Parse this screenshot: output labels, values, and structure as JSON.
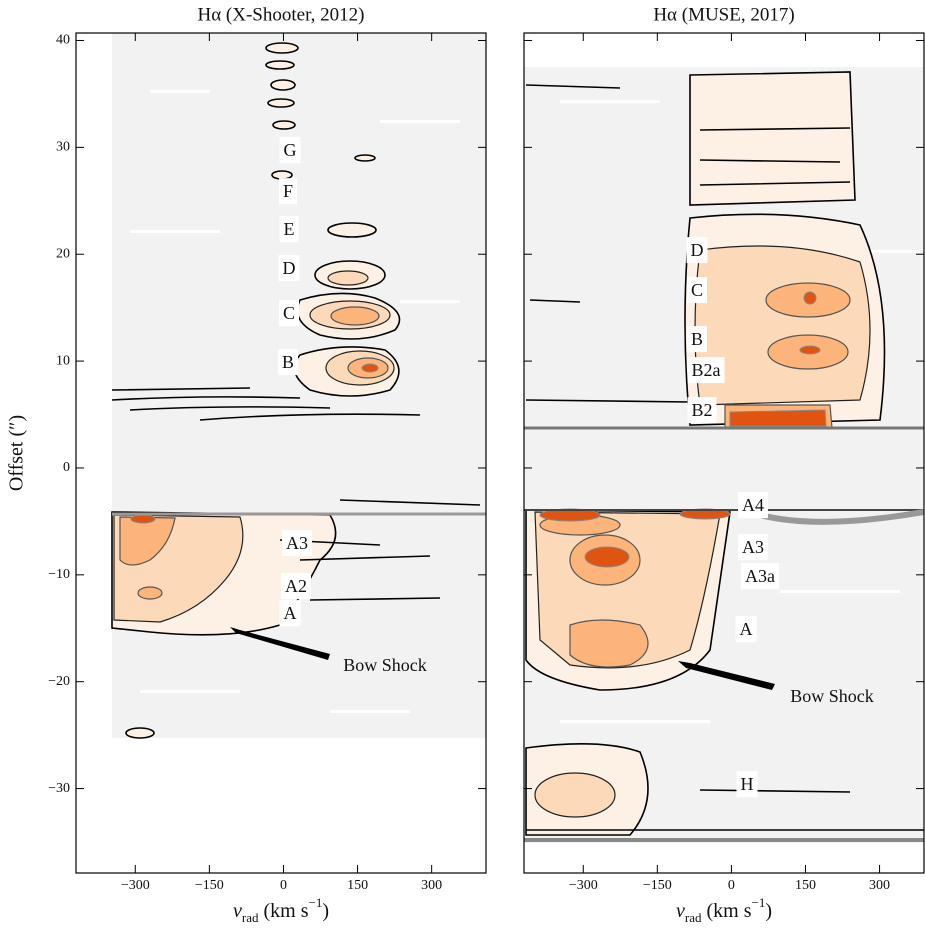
{
  "chart_data": [
    {
      "type": "contour",
      "title": "Hα (X-Shooter, 2012)",
      "xlabel": [
        "v",
        "rad",
        "(km s",
        "−1",
        ")"
      ],
      "ylabel": "Offset (″)",
      "xlim": [
        -420,
        410
      ],
      "ylim": [
        -37.9,
        40.7
      ],
      "xticks": [
        {
          "value": -300,
          "label": "−300"
        },
        {
          "value": -150,
          "label": "−150"
        },
        0,
        150,
        300
      ],
      "yticks": [
        {
          "value": -30,
          "label": "−30"
        },
        {
          "value": -20,
          "label": "−20"
        },
        {
          "value": -10,
          "label": "−10"
        },
        0,
        10,
        20,
        30,
        40
      ],
      "ytick_labels": true,
      "annotations": [
        "G",
        "F",
        "E",
        "D",
        "C",
        "B",
        "A3",
        "A2",
        "A",
        "Bow Shock"
      ]
    },
    {
      "type": "contour",
      "title": "Hα (MUSE, 2017)",
      "xlabel": [
        "v",
        "rad",
        "(km s",
        "−1",
        ")"
      ],
      "xlim": [
        -420,
        390
      ],
      "ylim": [
        -37.9,
        40.7
      ],
      "xticks": [
        {
          "value": -300,
          "label": "−300"
        },
        {
          "value": -150,
          "label": "−150"
        },
        0,
        150,
        300
      ],
      "yticks": [
        -30,
        -20,
        -10,
        0,
        10,
        20,
        30,
        40
      ],
      "ytick_labels": false,
      "annotations": [
        "D",
        "C",
        "B",
        "B2a",
        "B2",
        "A4",
        "A3",
        "A3a",
        "A",
        "H",
        "Bow Shock"
      ]
    }
  ]
}
